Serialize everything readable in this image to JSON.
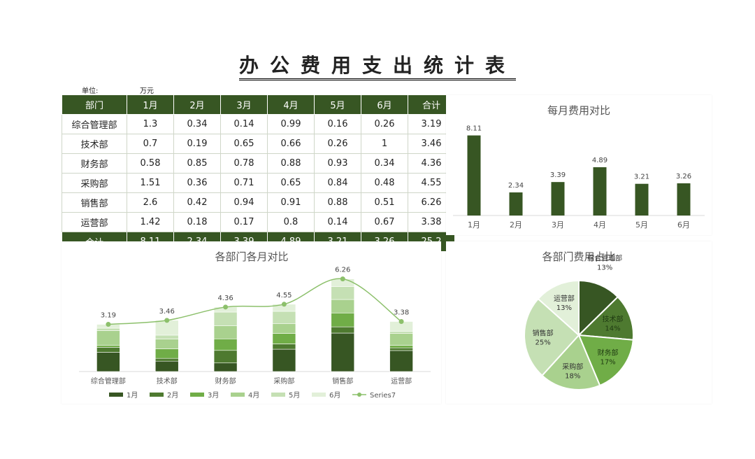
{
  "title": "办公费用支出统计表",
  "unit_label": "单位:",
  "unit_value": "万元",
  "table": {
    "headers": [
      "部门",
      "1月",
      "2月",
      "3月",
      "4月",
      "5月",
      "6月",
      "合计"
    ],
    "rows": [
      [
        "综合管理部",
        "1.3",
        "0.34",
        "0.14",
        "0.99",
        "0.16",
        "0.26",
        "3.19"
      ],
      [
        "技术部",
        "0.7",
        "0.19",
        "0.65",
        "0.66",
        "0.26",
        "1",
        "3.46"
      ],
      [
        "财务部",
        "0.58",
        "0.85",
        "0.78",
        "0.88",
        "0.93",
        "0.34",
        "4.36"
      ],
      [
        "采购部",
        "1.51",
        "0.36",
        "0.71",
        "0.65",
        "0.84",
        "0.48",
        "4.55"
      ],
      [
        "销售部",
        "2.6",
        "0.42",
        "0.94",
        "0.91",
        "0.88",
        "0.51",
        "6.26"
      ],
      [
        "运营部",
        "1.42",
        "0.18",
        "0.17",
        "0.8",
        "0.14",
        "0.67",
        "3.38"
      ]
    ],
    "total": [
      "合计",
      "8.11",
      "2.34",
      "3.39",
      "4.89",
      "3.21",
      "3.26",
      "25.2"
    ]
  },
  "colors": {
    "header_bg": "#375623",
    "bar": "#375623",
    "m1": "#375623",
    "m2": "#4e7a30",
    "m3": "#70ad47",
    "m4": "#a9d18e",
    "m5": "#c5e0b4",
    "m6": "#e2f0d9",
    "line": "#8cc06b"
  },
  "chart_data": [
    {
      "type": "bar",
      "title": "每月费用对比",
      "categories": [
        "1月",
        "2月",
        "3月",
        "4月",
        "5月",
        "6月"
      ],
      "values": [
        8.11,
        2.34,
        3.39,
        4.89,
        3.21,
        3.26
      ],
      "ylim": [
        0,
        9
      ],
      "grid": false
    },
    {
      "type": "bar",
      "stacked": true,
      "title": "各部门各月对比",
      "categories": [
        "综合管理部",
        "技术部",
        "财务部",
        "采购部",
        "销售部",
        "运营部"
      ],
      "series": [
        {
          "name": "1月",
          "values": [
            1.3,
            0.7,
            0.58,
            1.51,
            2.6,
            1.42
          ]
        },
        {
          "name": "2月",
          "values": [
            0.34,
            0.19,
            0.85,
            0.36,
            0.42,
            0.18
          ]
        },
        {
          "name": "3月",
          "values": [
            0.14,
            0.65,
            0.78,
            0.71,
            0.94,
            0.17
          ]
        },
        {
          "name": "4月",
          "values": [
            0.99,
            0.66,
            0.88,
            0.65,
            0.91,
            0.8
          ]
        },
        {
          "name": "5月",
          "values": [
            0.16,
            0.26,
            0.93,
            0.84,
            0.88,
            0.14
          ]
        },
        {
          "name": "6月",
          "values": [
            0.26,
            1,
            0.34,
            0.48,
            0.51,
            0.67
          ]
        }
      ],
      "line_series": {
        "name": "Series7",
        "values": [
          3.19,
          3.46,
          4.36,
          4.55,
          6.26,
          3.38
        ]
      },
      "ylim": [
        0,
        7
      ],
      "legend": "bottom"
    },
    {
      "type": "pie",
      "title": "各部门费用占比",
      "labels": [
        "综合管理部",
        "技术部",
        "财务部",
        "采购部",
        "销售部",
        "运营部"
      ],
      "values": [
        3.19,
        3.46,
        4.36,
        4.55,
        6.26,
        3.38
      ],
      "percent_labels": [
        "13%",
        "14%",
        "17%",
        "18%",
        "25%",
        "13%"
      ]
    }
  ]
}
